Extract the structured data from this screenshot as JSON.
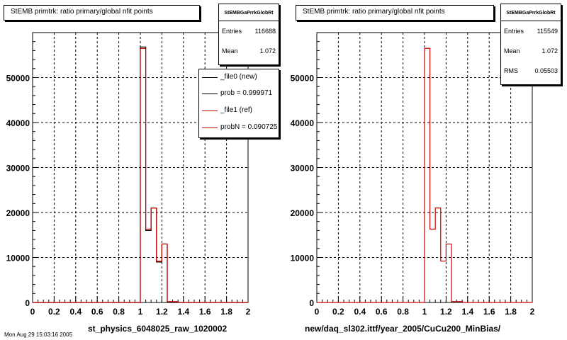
{
  "chart_data": [
    {
      "type": "histogram",
      "title": "StEMB primtrk: ratio primary/global nfit points",
      "xlabel": "st_physics_6048025_raw_1020002",
      "xlim": [
        0,
        2
      ],
      "ylim": [
        0,
        60000
      ],
      "xticks": [
        "0",
        "0.2",
        "0.4",
        "0.6",
        "0.8",
        "1",
        "1.2",
        "1.4",
        "1.6",
        "1.8",
        "2"
      ],
      "yticks": [
        "0",
        "10000",
        "20000",
        "30000",
        "40000",
        "50000"
      ],
      "grid": true,
      "bin_width": 0.05,
      "x_start": 0,
      "series": [
        {
          "color": "#000000",
          "values": [
            0,
            0,
            0,
            0,
            0,
            0,
            0,
            0,
            0,
            0,
            0,
            0,
            0,
            0,
            0,
            0,
            0,
            0,
            0,
            0,
            56800,
            16000,
            21000,
            9000,
            13000,
            0,
            0,
            0,
            0,
            0,
            0,
            0,
            0,
            0,
            0,
            0,
            0,
            0,
            0,
            0
          ]
        },
        {
          "color": "#cc0000",
          "values": [
            0,
            0,
            0,
            0,
            0,
            0,
            0,
            0,
            0,
            0,
            0,
            0,
            0,
            0,
            0,
            0,
            0,
            0,
            0,
            0,
            56500,
            16300,
            21000,
            9200,
            13000,
            200,
            200,
            0,
            0,
            0,
            0,
            0,
            0,
            0,
            0,
            0,
            0,
            0,
            0,
            0
          ]
        }
      ],
      "stats": {
        "name": "StEMBGaPrrkGlobRt",
        "rows": [
          {
            "label": "Entries",
            "value": "116688"
          },
          {
            "label": "Mean",
            "value": "1.072"
          }
        ]
      },
      "legend": [
        {
          "label": "_file0 (new)",
          "color": "#000000"
        },
        {
          "label": "prob = 0.999971",
          "color": "#000000"
        },
        {
          "label": "_file1 (ref)",
          "color": "#cc0000"
        },
        {
          "label": "probN = 0.090725",
          "color": "#cc0000"
        }
      ]
    },
    {
      "type": "histogram",
      "title": "StEMB primtrk: ratio primary/global nfit points",
      "xlabel": "new/daq_sl302.ittf/year_2005/CuCu200_MinBias/",
      "xlim": [
        0,
        2
      ],
      "ylim": [
        0,
        60000
      ],
      "xticks": [
        "0",
        "0.2",
        "0.4",
        "0.6",
        "0.8",
        "1",
        "1.2",
        "1.4",
        "1.6",
        "1.8",
        "2"
      ],
      "yticks": [
        "0",
        "10000",
        "20000",
        "30000",
        "40000",
        "50000"
      ],
      "grid": true,
      "bin_width": 0.05,
      "x_start": 0,
      "series": [
        {
          "color": "#cc0000",
          "values": [
            0,
            0,
            0,
            0,
            0,
            0,
            0,
            0,
            0,
            0,
            0,
            0,
            0,
            0,
            0,
            0,
            0,
            0,
            0,
            0,
            56500,
            16300,
            21000,
            9200,
            13000,
            200,
            200,
            0,
            0,
            0,
            0,
            0,
            0,
            0,
            0,
            0,
            0,
            0,
            0,
            0
          ]
        }
      ],
      "stats": {
        "name": "StEMBGaPrrkGlobRt",
        "rows": [
          {
            "label": "Entries",
            "value": "115549"
          },
          {
            "label": "Mean",
            "value": "1.072"
          },
          {
            "label": "RMS",
            "value": "0.05503"
          }
        ]
      },
      "legend": []
    }
  ],
  "footer": "Mon Aug 29 15:03:16 2005"
}
